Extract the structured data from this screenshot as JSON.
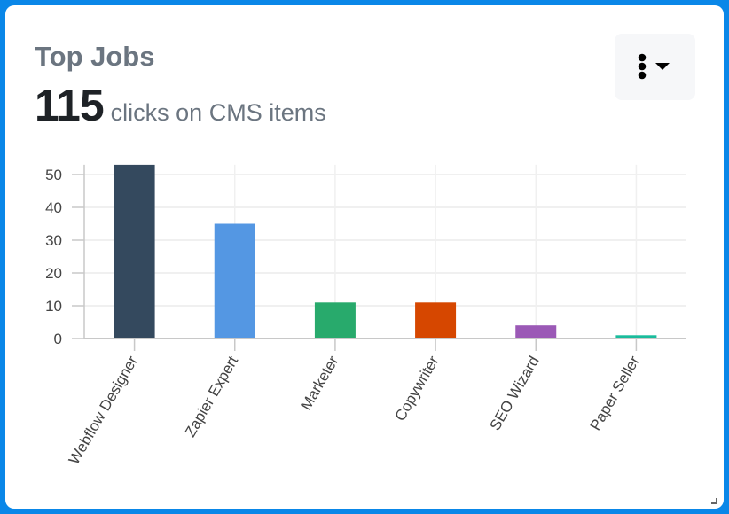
{
  "card": {
    "title": "Top Jobs",
    "metric_value": "115",
    "metric_label": "clicks on CMS items",
    "menu_button": {
      "icon": "vertical-ellipsis-icon",
      "caret": "caret-down-icon"
    }
  },
  "chart_data": {
    "type": "bar",
    "title": "Top Jobs",
    "xlabel": "",
    "ylabel": "",
    "categories": [
      "Webflow Designer",
      "Zapier Expert",
      "Marketer",
      "Copywriter",
      "SEO Wizard",
      "Paper Seller"
    ],
    "values": [
      53,
      35,
      11,
      11,
      4,
      1
    ],
    "colors": [
      "#34495e",
      "#5497e3",
      "#28aa6c",
      "#d64700",
      "#9b59b6",
      "#1abc9c"
    ],
    "yticks": [
      0,
      10,
      20,
      30,
      40,
      50
    ],
    "ylim": [
      0,
      53
    ],
    "grid": true,
    "legend": "none",
    "xtick_rotation": -60
  },
  "colors": {
    "frame": "#0a87e8",
    "title": "#6b7580",
    "metric": "#1e2226"
  }
}
